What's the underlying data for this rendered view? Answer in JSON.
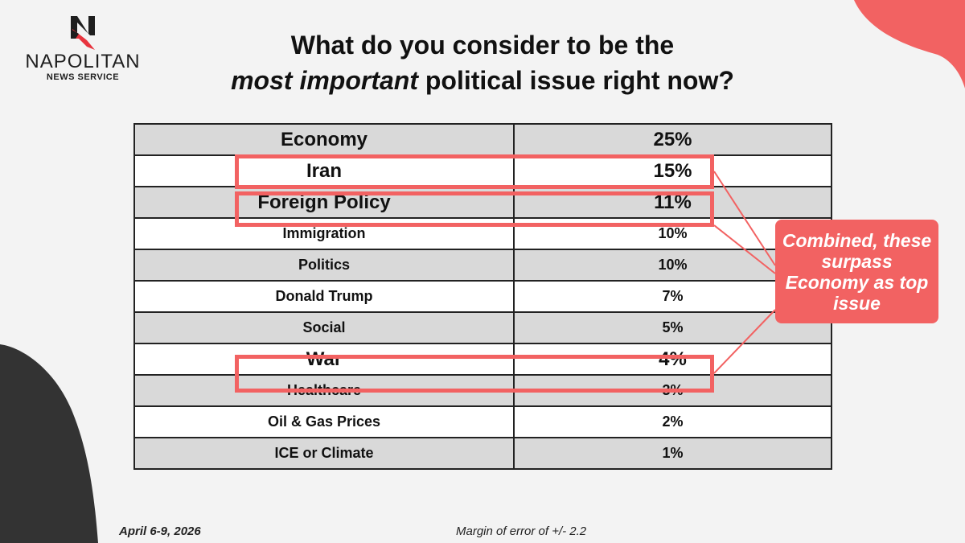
{
  "logo": {
    "name": "NAPOLITAN",
    "subtitle": "NEWS SERVICE"
  },
  "title": {
    "line1": "What do you consider to be the",
    "emphasis": "most important",
    "line2_rest": "political issue right now?"
  },
  "colors": {
    "accent": "#f26262",
    "dark": "#333333",
    "shaded_row": "#d9d9d9",
    "background": "#f3f3f3"
  },
  "chart_data": {
    "type": "table",
    "title": "What do you consider to be the most important political issue right now?",
    "rows": [
      {
        "issue": "Economy",
        "value": "25%"
      },
      {
        "issue": "Iran",
        "value": "15%"
      },
      {
        "issue": "Foreign Policy",
        "value": "11%"
      },
      {
        "issue": "Immigration",
        "value": "10%"
      },
      {
        "issue": "Politics",
        "value": "10%"
      },
      {
        "issue": "Donald Trump",
        "value": "7%"
      },
      {
        "issue": "Social",
        "value": "5%"
      },
      {
        "issue": "War",
        "value": "4%"
      },
      {
        "issue": "Healthcare",
        "value": "3%"
      },
      {
        "issue": "Oil & Gas Prices",
        "value": "2%"
      },
      {
        "issue": "ICE or Climate",
        "value": "1%"
      }
    ],
    "highlighted": [
      "Iran",
      "Foreign Policy",
      "War"
    ]
  },
  "callout": {
    "text": "Combined, these surpass Economy as top issue"
  },
  "footer": {
    "date": "April 6-9, 2026",
    "margin": "Margin of error of +/- 2.2"
  }
}
